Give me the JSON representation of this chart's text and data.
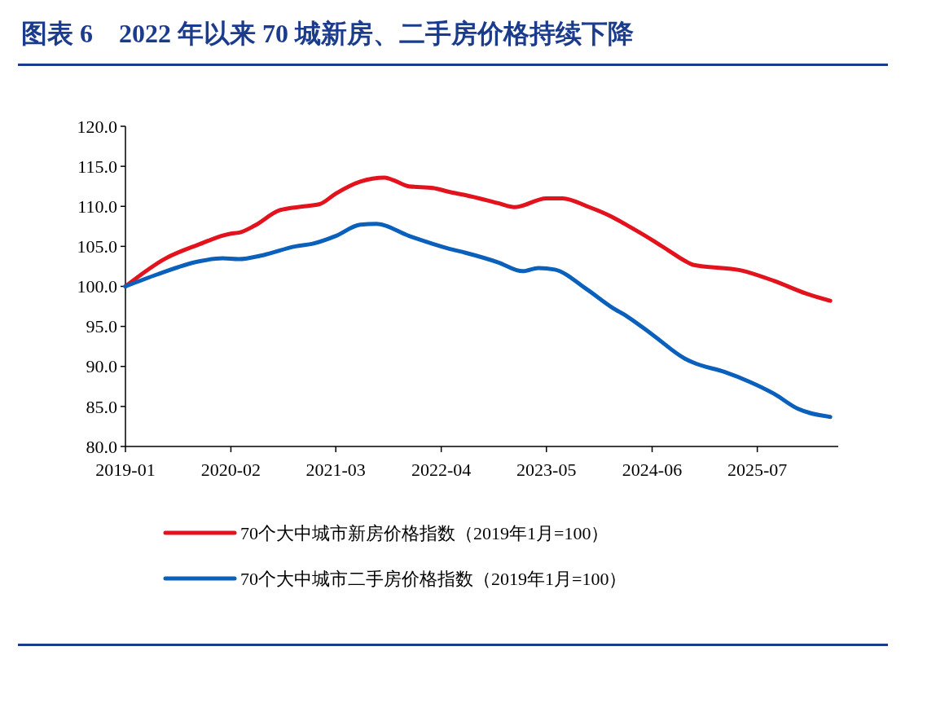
{
  "chart_data": {
    "type": "line",
    "title": "图表 6　2022 年以来 70 城新房、二手房价格持续下降",
    "xlim": [
      "2019-01",
      "2026-05"
    ],
    "xticks": [
      "2019-01",
      "2020-02",
      "2021-03",
      "2022-04",
      "2023-05",
      "2024-06",
      "2025-07"
    ],
    "ylim": [
      80,
      120
    ],
    "yticks": [
      {
        "value": 80,
        "label": "80.0"
      },
      {
        "value": 85,
        "label": "85.0"
      },
      {
        "value": 90,
        "label": "90.0"
      },
      {
        "value": 95,
        "label": "95.0"
      },
      {
        "value": 100,
        "label": "100.0"
      },
      {
        "value": 105,
        "label": "105.0"
      },
      {
        "value": 110,
        "label": "110.0"
      },
      {
        "value": 115,
        "label": "115.0"
      },
      {
        "value": 120,
        "label": "120.0"
      }
    ],
    "grid": false,
    "legend": "bottom",
    "marker": "none",
    "line_style": "solid",
    "series": [
      {
        "name": "70个大中城市新房价格指数（2019年1月=100）",
        "color": "#e3131e",
        "x": [
          "2019-01",
          "2019-06",
          "2019-10",
          "2020-02",
          "2020-03",
          "2020-05",
          "2020-08",
          "2020-11",
          "2021-01",
          "2021-03",
          "2021-06",
          "2021-09",
          "2021-10",
          "2021-12",
          "2022-03",
          "2022-05",
          "2022-07",
          "2022-11",
          "2023-01",
          "2023-05",
          "2023-07",
          "2023-10",
          "2024-01",
          "2024-03",
          "2024-06",
          "2024-08",
          "2024-10",
          "2024-11",
          "2025-05",
          "2025-09",
          "2026-01",
          "2026-04"
        ],
        "values": [
          100,
          103.5,
          105.2,
          106.6,
          106.7,
          107.6,
          109.5,
          110.0,
          110.3,
          111.6,
          113.1,
          113.6,
          113.3,
          112.5,
          112.3,
          111.8,
          111.4,
          110.4,
          109.9,
          111.0,
          111.0,
          110.0,
          108.7,
          107.6,
          105.8,
          104.5,
          103.2,
          102.7,
          102.0,
          100.7,
          99.1,
          98.2
        ]
      },
      {
        "name": "70个大中城市二手房价格指数（2019年1月=100）",
        "color": "#0a60bb",
        "x": [
          "2019-01",
          "2019-05",
          "2019-10",
          "2020-01",
          "2020-03",
          "2020-06",
          "2020-10",
          "2020-12",
          "2021-03",
          "2021-06",
          "2021-08",
          "2021-12",
          "2022-05",
          "2022-07",
          "2022-11",
          "2023-02",
          "2023-04",
          "2023-06",
          "2023-10",
          "2024-01",
          "2024-03",
          "2024-06",
          "2024-10",
          "2024-11",
          "2025-03",
          "2025-06",
          "2025-09",
          "2025-12",
          "2026-04"
        ],
        "values": [
          100,
          101.5,
          103.1,
          103.5,
          103.4,
          103.9,
          105.0,
          105.3,
          106.3,
          107.7,
          107.8,
          106.3,
          104.7,
          104.2,
          103.0,
          101.9,
          102.3,
          102.1,
          99.6,
          97.4,
          96.2,
          94.0,
          91.0,
          90.5,
          89.3,
          88.1,
          86.6,
          84.7,
          83.7
        ]
      }
    ]
  }
}
